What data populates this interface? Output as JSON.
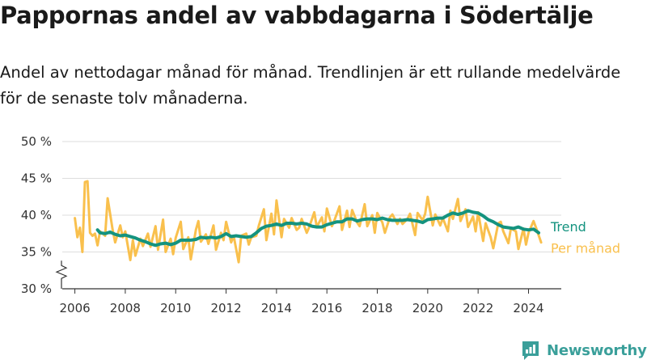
{
  "title": "Pappornas andel av vabbdagarna i Södertälje",
  "subtitle": "Andel av nettodagar månad för månad. Trendlinjen är ett rullande medelvärde för de senaste tolv månaderna.",
  "brand": {
    "name": "Newsworthy",
    "icon": "newsworthy-logo-icon"
  },
  "colors": {
    "monthly": "#f9c04d",
    "trend": "#14937f",
    "axis": "#333333",
    "grid": "#dddddd",
    "brand": "#3a9f9a"
  },
  "chart_data": {
    "type": "line",
    "x_unit": "year",
    "xlim": [
      2005.5,
      2025.3
    ],
    "ylim": [
      30,
      50
    ],
    "y_axis_break": true,
    "grid": "horizontal",
    "yticks": [
      {
        "value": 30,
        "label": "30 %"
      },
      {
        "value": 35,
        "label": "35 %"
      },
      {
        "value": 40,
        "label": "40 %"
      },
      {
        "value": 45,
        "label": "45 %"
      },
      {
        "value": 50,
        "label": "50 %"
      }
    ],
    "xticks": [
      {
        "value": 2006,
        "label": "2006"
      },
      {
        "value": 2008,
        "label": "2008"
      },
      {
        "value": 2010,
        "label": "2010"
      },
      {
        "value": 2012,
        "label": "2012"
      },
      {
        "value": 2014,
        "label": "2014"
      },
      {
        "value": 2016,
        "label": "2016"
      },
      {
        "value": 2018,
        "label": "2018"
      },
      {
        "value": 2020,
        "label": "2020"
      },
      {
        "value": 2022,
        "label": "2022"
      },
      {
        "value": 2024,
        "label": "2024"
      }
    ],
    "series": [
      {
        "name": "Per månad",
        "color": "#f9c04d",
        "x": [
          2006.0,
          2006.1,
          2006.2,
          2006.3,
          2006.4,
          2006.5,
          2006.6,
          2006.7,
          2006.8,
          2006.9,
          2007.0,
          2007.2,
          2007.3,
          2007.5,
          2007.6,
          2007.8,
          2007.9,
          2008.0,
          2008.2,
          2008.3,
          2008.4,
          2008.6,
          2008.7,
          2008.9,
          2009.0,
          2009.2,
          2009.3,
          2009.5,
          2009.6,
          2009.8,
          2009.9,
          2010.0,
          2010.2,
          2010.3,
          2010.5,
          2010.6,
          2010.8,
          2010.9,
          2011.0,
          2011.2,
          2011.3,
          2011.5,
          2011.6,
          2011.8,
          2011.9,
          2012.0,
          2012.2,
          2012.3,
          2012.5,
          2012.6,
          2012.8,
          2012.9,
          2013.0,
          2013.2,
          2013.3,
          2013.5,
          2013.6,
          2013.8,
          2013.9,
          2014.0,
          2014.2,
          2014.3,
          2014.5,
          2014.6,
          2014.8,
          2014.9,
          2015.0,
          2015.2,
          2015.3,
          2015.5,
          2015.6,
          2015.8,
          2015.9,
          2016.0,
          2016.2,
          2016.3,
          2016.5,
          2016.6,
          2016.8,
          2016.9,
          2017.0,
          2017.2,
          2017.3,
          2017.5,
          2017.6,
          2017.8,
          2017.9,
          2018.0,
          2018.2,
          2018.3,
          2018.5,
          2018.6,
          2018.8,
          2018.9,
          2019.0,
          2019.2,
          2019.3,
          2019.5,
          2019.6,
          2019.8,
          2019.9,
          2020.0,
          2020.2,
          2020.3,
          2020.5,
          2020.6,
          2020.8,
          2020.9,
          2021.0,
          2021.2,
          2021.3,
          2021.5,
          2021.6,
          2021.8,
          2021.9,
          2022.0,
          2022.2,
          2022.3,
          2022.5,
          2022.6,
          2022.8,
          2022.9,
          2023.0,
          2023.2,
          2023.3,
          2023.5,
          2023.6,
          2023.8,
          2023.9,
          2024.0,
          2024.2,
          2024.3,
          2024.5
        ],
        "values": [
          39.6,
          37.0,
          38.3,
          35.0,
          44.5,
          44.6,
          37.6,
          37.2,
          37.5,
          35.9,
          37.8,
          37.2,
          42.3,
          38.0,
          36.3,
          38.6,
          37.0,
          37.8,
          33.9,
          36.6,
          34.5,
          36.8,
          35.8,
          37.5,
          35.7,
          38.5,
          35.3,
          39.4,
          35.0,
          36.8,
          34.7,
          36.9,
          39.1,
          35.4,
          37.0,
          34.0,
          38.0,
          39.2,
          36.4,
          37.4,
          36.1,
          38.6,
          35.3,
          37.6,
          36.6,
          39.1,
          36.3,
          37.2,
          33.6,
          37.2,
          37.5,
          36.0,
          37.0,
          37.2,
          38.6,
          40.8,
          36.6,
          40.2,
          37.4,
          42.0,
          37.0,
          39.5,
          38.3,
          39.6,
          38.0,
          38.3,
          39.5,
          37.6,
          38.4,
          40.4,
          38.4,
          39.7,
          37.8,
          40.9,
          38.5,
          39.3,
          41.2,
          38.0,
          40.6,
          38.4,
          40.7,
          39.0,
          38.5,
          41.5,
          38.5,
          40.0,
          37.6,
          40.3,
          39.0,
          37.6,
          39.7,
          40.1,
          38.8,
          39.5,
          38.8,
          39.5,
          40.2,
          37.3,
          40.3,
          39.3,
          40.2,
          42.5,
          38.6,
          40.1,
          38.6,
          39.6,
          37.8,
          40.6,
          39.5,
          42.2,
          39.2,
          40.8,
          38.4,
          39.8,
          37.8,
          40.4,
          36.5,
          38.9,
          37.0,
          35.5,
          38.9,
          39.1,
          37.8,
          36.2,
          38.2,
          37.8,
          35.4,
          38.2,
          36.0,
          37.6,
          39.2,
          38.3,
          36.3
        ]
      },
      {
        "name": "Trend",
        "color": "#14937f",
        "x": [
          2006.9,
          2007.0,
          2007.2,
          2007.4,
          2007.6,
          2007.8,
          2008.0,
          2008.2,
          2008.4,
          2008.6,
          2008.8,
          2009.0,
          2009.2,
          2009.4,
          2009.6,
          2009.8,
          2010.0,
          2010.2,
          2010.4,
          2010.6,
          2010.8,
          2011.0,
          2011.2,
          2011.4,
          2011.6,
          2011.8,
          2012.0,
          2012.2,
          2012.4,
          2012.6,
          2012.8,
          2013.0,
          2013.2,
          2013.4,
          2013.6,
          2013.8,
          2014.0,
          2014.2,
          2014.4,
          2014.6,
          2014.8,
          2015.0,
          2015.2,
          2015.4,
          2015.6,
          2015.8,
          2016.0,
          2016.2,
          2016.4,
          2016.6,
          2016.8,
          2017.0,
          2017.2,
          2017.4,
          2017.6,
          2017.8,
          2018.0,
          2018.2,
          2018.4,
          2018.6,
          2018.8,
          2019.0,
          2019.2,
          2019.4,
          2019.6,
          2019.8,
          2020.0,
          2020.2,
          2020.4,
          2020.6,
          2020.8,
          2021.0,
          2021.2,
          2021.4,
          2021.6,
          2021.8,
          2022.0,
          2022.2,
          2022.4,
          2022.6,
          2022.8,
          2023.0,
          2023.2,
          2023.4,
          2023.6,
          2023.8,
          2024.0,
          2024.2,
          2024.4
        ],
        "values": [
          38.0,
          37.6,
          37.5,
          37.7,
          37.4,
          37.2,
          37.3,
          37.1,
          36.9,
          36.6,
          36.4,
          36.1,
          35.9,
          36.1,
          36.2,
          36.0,
          36.2,
          36.6,
          36.6,
          36.6,
          36.7,
          37.0,
          36.9,
          37.0,
          36.9,
          37.1,
          37.5,
          37.1,
          37.2,
          37.1,
          37.0,
          37.1,
          37.6,
          38.2,
          38.5,
          38.6,
          38.8,
          38.6,
          38.9,
          38.9,
          38.8,
          38.9,
          38.8,
          38.5,
          38.4,
          38.4,
          38.7,
          38.9,
          39.1,
          39.1,
          39.5,
          39.5,
          39.2,
          39.4,
          39.5,
          39.5,
          39.4,
          39.6,
          39.4,
          39.3,
          39.3,
          39.3,
          39.4,
          39.3,
          39.2,
          39.0,
          39.4,
          39.5,
          39.6,
          39.6,
          40.0,
          40.3,
          40.1,
          40.3,
          40.6,
          40.4,
          40.3,
          39.9,
          39.4,
          39.1,
          38.7,
          38.4,
          38.3,
          38.2,
          38.4,
          38.1,
          38.0,
          38.1,
          37.6
        ]
      }
    ]
  }
}
